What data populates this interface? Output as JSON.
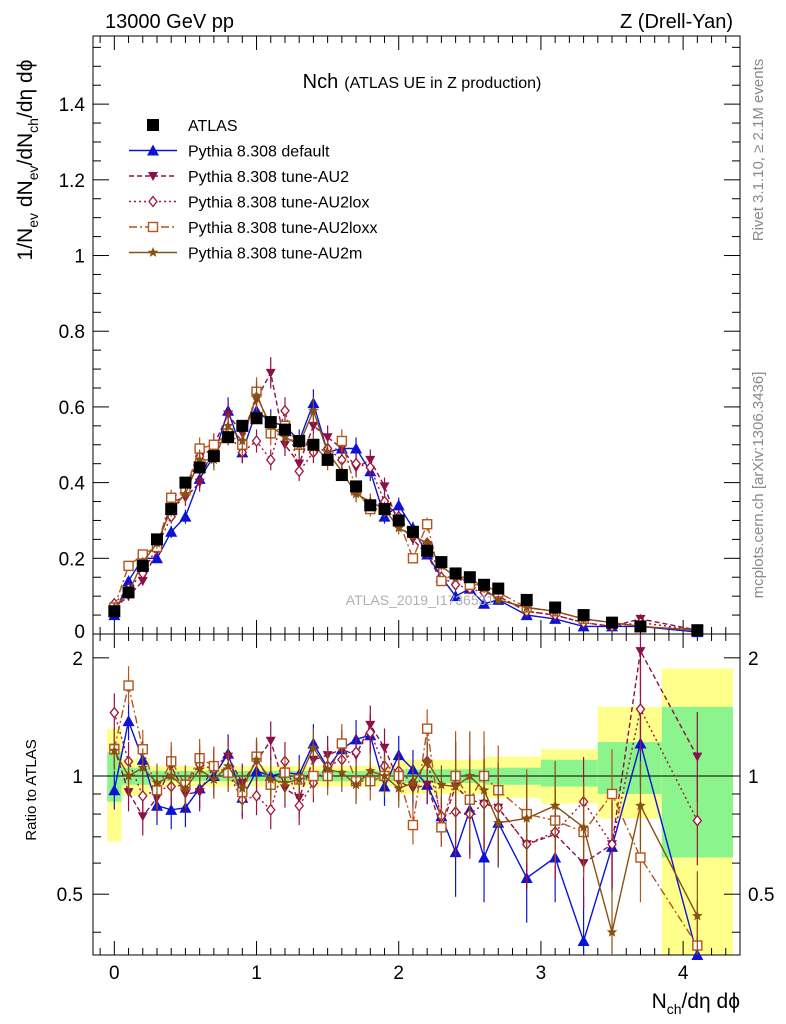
{
  "header": {
    "energy_label": "13000 GeV pp",
    "process_label": "Z (Drell-Yan)",
    "rivet_label": "Rivet 3.1.10, ≥ 2.1M events",
    "mcplots_label": "mcplots.cern.ch [arXiv:1306.3436]",
    "watermark": "ATLAS_2019_I1736531"
  },
  "colors": {
    "atlas": "#000000",
    "default": "#0b14d4",
    "au2": "#8c0f4a",
    "au2lox": "#a0123a",
    "au2loxx": "#b4541e",
    "au2m": "#8a5010",
    "band_yellow": "#ffff8c",
    "band_green": "#8cf48c"
  },
  "chart_data": [
    {
      "type": "scatter",
      "title": "Nch",
      "subtitle": "(ATLAS UE in Z production)",
      "ylabel_main": "1/N",
      "ylabel_sub1": "ev",
      "ylabel_mid": " dN",
      "ylabel_sub2": "ev",
      "ylabel_mid2": "/dN",
      "ylabel_sub3": "ch",
      "ylabel_tail": "/dη dϕ",
      "xlim": [
        -0.15,
        4.4
      ],
      "ylim": [
        0,
        1.58
      ],
      "y_ticks": [
        "0.2",
        "0.4",
        "0.6",
        "0.8",
        "1",
        "1.2",
        "1.4"
      ],
      "x": [
        0.0,
        0.1,
        0.2,
        0.3,
        0.4,
        0.5,
        0.6,
        0.7,
        0.8,
        0.9,
        1.0,
        1.1,
        1.2,
        1.3,
        1.4,
        1.5,
        1.6,
        1.7,
        1.8,
        1.9,
        2.0,
        2.1,
        2.2,
        2.3,
        2.4,
        2.5,
        2.6,
        2.7,
        2.9,
        3.1,
        3.3,
        3.5,
        3.7,
        4.1
      ],
      "series": [
        {
          "name": "ATLAS",
          "marker": "square",
          "values": [
            0.06,
            0.11,
            0.18,
            0.25,
            0.33,
            0.4,
            0.44,
            0.47,
            0.52,
            0.55,
            0.57,
            0.56,
            0.54,
            0.51,
            0.5,
            0.46,
            0.42,
            0.39,
            0.34,
            0.33,
            0.3,
            0.27,
            0.22,
            0.19,
            0.16,
            0.15,
            0.13,
            0.12,
            0.09,
            0.07,
            0.05,
            0.03,
            0.02,
            0.01
          ]
        },
        {
          "name": "Pythia 8.308 default",
          "marker": "triangle-up",
          "values": [
            0.05,
            0.14,
            0.2,
            0.2,
            0.27,
            0.31,
            0.41,
            0.47,
            0.59,
            0.48,
            0.59,
            0.56,
            0.55,
            0.51,
            0.61,
            0.48,
            0.49,
            0.49,
            0.43,
            0.31,
            0.34,
            0.28,
            0.21,
            0.15,
            0.1,
            0.12,
            0.08,
            0.09,
            0.05,
            0.04,
            0.02,
            0.02,
            0.02,
            0.005
          ]
        },
        {
          "name": "Pythia 8.308 tune-AU2",
          "marker": "triangle-down",
          "values": [
            0.07,
            0.1,
            0.14,
            0.22,
            0.35,
            0.36,
            0.4,
            0.5,
            0.58,
            0.53,
            0.62,
            0.69,
            0.5,
            0.45,
            0.55,
            0.52,
            0.49,
            0.44,
            0.46,
            0.39,
            0.29,
            0.25,
            0.21,
            0.14,
            0.15,
            0.13,
            0.11,
            0.1,
            0.06,
            0.05,
            0.03,
            0.02,
            0.04,
            0.01
          ]
        },
        {
          "name": "Pythia 8.308 tune-AU2lox",
          "marker": "diamond-open",
          "values": [
            0.08,
            0.12,
            0.16,
            0.23,
            0.31,
            0.38,
            0.47,
            0.49,
            0.53,
            0.48,
            0.51,
            0.46,
            0.59,
            0.43,
            0.48,
            0.49,
            0.46,
            0.45,
            0.44,
            0.35,
            0.31,
            0.26,
            0.24,
            0.15,
            0.13,
            0.12,
            0.11,
            0.1,
            0.06,
            0.05,
            0.03,
            0.02,
            0.03,
            0.01
          ]
        },
        {
          "name": "Pythia 8.308 tune-AU2loxx",
          "marker": "square-open",
          "values": [
            0.07,
            0.18,
            0.21,
            0.23,
            0.36,
            0.38,
            0.49,
            0.5,
            0.53,
            0.5,
            0.64,
            0.53,
            0.55,
            0.5,
            0.5,
            0.46,
            0.51,
            0.38,
            0.33,
            0.33,
            0.3,
            0.2,
            0.29,
            0.14,
            0.16,
            0.13,
            0.13,
            0.11,
            0.07,
            0.06,
            0.04,
            0.03,
            0.02,
            0.01
          ]
        },
        {
          "name": "Pythia 8.308 tune-AU2m",
          "marker": "star",
          "values": [
            0.07,
            0.11,
            0.19,
            0.24,
            0.33,
            0.37,
            0.46,
            0.46,
            0.55,
            0.51,
            0.63,
            0.55,
            0.52,
            0.5,
            0.59,
            0.48,
            0.43,
            0.37,
            0.35,
            0.33,
            0.28,
            0.26,
            0.24,
            0.18,
            0.15,
            0.15,
            0.12,
            0.09,
            0.07,
            0.06,
            0.04,
            0.03,
            0.02,
            0.01
          ]
        }
      ]
    },
    {
      "type": "scatter",
      "ylabel": "Ratio to ATLAS",
      "xlabel_main": "N",
      "xlabel_sub": "ch",
      "xlabel_tail": "/dη dϕ",
      "xlim": [
        -0.15,
        4.4
      ],
      "ylim": [
        0.35,
        2.3
      ],
      "x_ticks": [
        "0",
        "1",
        "2",
        "3",
        "4"
      ],
      "y_ticks": [
        "0.5",
        "1",
        "2"
      ],
      "bands": [
        {
          "x": [
            -0.05,
            0.05
          ],
          "green": [
            0.86,
            1.15
          ],
          "yellow": [
            0.68,
            1.32
          ]
        },
        {
          "x": [
            0.05,
            0.25
          ],
          "green": [
            0.95,
            1.05
          ],
          "yellow": [
            0.89,
            1.11
          ]
        },
        {
          "x": [
            0.25,
            2.0
          ],
          "green": [
            0.97,
            1.03
          ],
          "yellow": [
            0.94,
            1.06
          ]
        },
        {
          "x": [
            2.0,
            2.6
          ],
          "green": [
            0.96,
            1.04
          ],
          "yellow": [
            0.9,
            1.1
          ]
        },
        {
          "x": [
            2.6,
            3.0
          ],
          "green": [
            0.95,
            1.05
          ],
          "yellow": [
            0.88,
            1.12
          ]
        },
        {
          "x": [
            3.0,
            3.4
          ],
          "green": [
            0.94,
            1.1
          ],
          "yellow": [
            0.85,
            1.17
          ]
        },
        {
          "x": [
            3.4,
            3.85
          ],
          "green": [
            0.9,
            1.22
          ],
          "yellow": [
            0.78,
            1.5
          ]
        },
        {
          "x": [
            3.85,
            4.35
          ],
          "green": [
            0.62,
            1.5
          ],
          "yellow": [
            0.35,
            1.88
          ]
        }
      ],
      "series": [
        {
          "name": "Pythia 8.308 default",
          "values": [
            0.92,
            1.38,
            1.1,
            0.84,
            0.82,
            0.83,
            0.93,
            1.0,
            1.14,
            0.88,
            1.03,
            1.0,
            1.02,
            1.01,
            1.21,
            1.05,
            1.17,
            1.24,
            1.27,
            0.94,
            1.13,
            1.04,
            0.95,
            0.79,
            0.64,
            0.82,
            0.62,
            0.76,
            0.55,
            0.62,
            0.38,
            0.66,
            1.21,
            0.3
          ]
        },
        {
          "name": "Pythia 8.308 tune-AU2",
          "values": [
            1.18,
            0.91,
            0.79,
            0.88,
            1.06,
            0.9,
            0.91,
            1.06,
            1.12,
            0.96,
            1.09,
            1.23,
            0.93,
            0.88,
            1.1,
            1.13,
            1.17,
            1.13,
            1.35,
            1.18,
            0.97,
            0.93,
            0.95,
            0.74,
            0.94,
            0.87,
            0.85,
            0.83,
            0.67,
            0.71,
            0.6,
            0.67,
            2.08,
            1.12
          ]
        },
        {
          "name": "Pythia 8.308 tune-AU2lox",
          "values": [
            1.45,
            1.09,
            0.89,
            0.92,
            0.94,
            0.95,
            1.07,
            1.04,
            1.02,
            0.87,
            0.89,
            0.82,
            1.09,
            0.84,
            0.96,
            1.06,
            1.1,
            1.15,
            1.29,
            1.06,
            1.03,
            0.96,
            1.09,
            0.79,
            0.81,
            0.8,
            0.85,
            0.83,
            0.67,
            0.72,
            0.86,
            0.67,
            1.48,
            0.77
          ]
        },
        {
          "name": "Pythia 8.308 tune-AU2loxx",
          "values": [
            1.17,
            1.7,
            1.17,
            0.92,
            1.09,
            0.95,
            1.11,
            1.06,
            1.02,
            0.91,
            1.12,
            0.95,
            1.02,
            0.98,
            1.0,
            1.0,
            1.21,
            0.97,
            0.97,
            1.0,
            1.0,
            0.75,
            1.32,
            0.74,
            1.0,
            0.87,
            1.0,
            0.92,
            0.8,
            0.77,
            0.72,
            0.9,
            0.62,
            0.37
          ]
        },
        {
          "name": "Pythia 8.308 tune-AU2m",
          "values": [
            1.16,
            1.0,
            1.05,
            0.96,
            1.0,
            0.93,
            1.04,
            0.98,
            1.06,
            0.93,
            1.1,
            0.98,
            0.96,
            0.98,
            1.18,
            1.04,
            1.02,
            0.95,
            1.03,
            1.0,
            0.93,
            0.96,
            1.09,
            0.95,
            0.94,
            1.0,
            0.92,
            0.76,
            0.78,
            0.84,
            0.74,
            0.4,
            0.84,
            0.44
          ]
        }
      ]
    }
  ]
}
